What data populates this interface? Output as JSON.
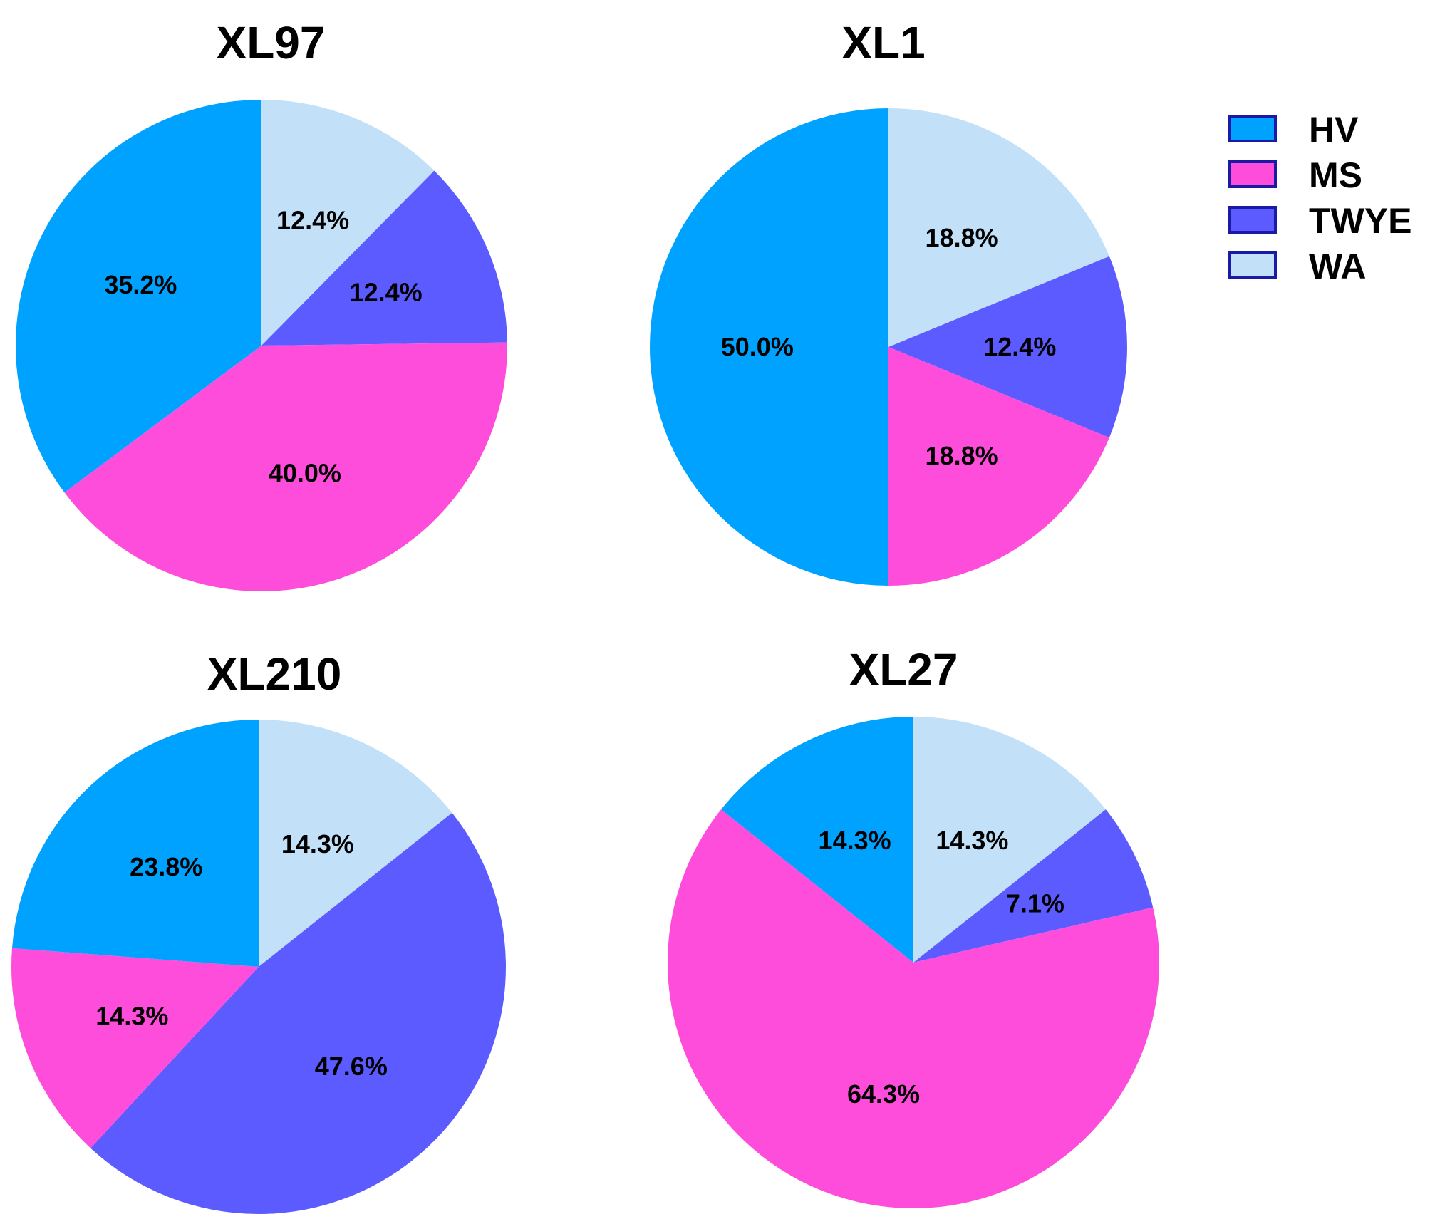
{
  "series_colors": {
    "HV": "#00a2ff",
    "MS": "#ff4ddb",
    "TWYE": "#5b5bff",
    "WA": "#c2e0f8"
  },
  "legend": {
    "placement": "top-right",
    "entries": [
      "HV",
      "MS",
      "TWYE",
      "WA"
    ],
    "border_color": "#1a1aa6"
  },
  "chart_data": [
    {
      "type": "pie",
      "title": "XL97",
      "slices": [
        {
          "category": "WA",
          "value": 12.4,
          "label": "12.4%"
        },
        {
          "category": "TWYE",
          "value": 12.4,
          "label": "12.4%"
        },
        {
          "category": "MS",
          "value": 40.0,
          "label": "40.0%"
        },
        {
          "category": "HV",
          "value": 35.2,
          "label": "35.2%"
        }
      ]
    },
    {
      "type": "pie",
      "title": "XL1",
      "slices": [
        {
          "category": "WA",
          "value": 18.8,
          "label": "18.8%"
        },
        {
          "category": "TWYE",
          "value": 12.4,
          "label": "12.4%"
        },
        {
          "category": "MS",
          "value": 18.8,
          "label": "18.8%"
        },
        {
          "category": "HV",
          "value": 50.0,
          "label": "50.0%"
        }
      ]
    },
    {
      "type": "pie",
      "title": "XL210",
      "slices": [
        {
          "category": "WA",
          "value": 14.3,
          "label": "14.3%"
        },
        {
          "category": "TWYE",
          "value": 47.6,
          "label": "47.6%"
        },
        {
          "category": "MS",
          "value": 14.3,
          "label": "14.3%"
        },
        {
          "category": "HV",
          "value": 23.8,
          "label": "23.8%"
        }
      ]
    },
    {
      "type": "pie",
      "title": "XL27",
      "slices": [
        {
          "category": "WA",
          "value": 14.3,
          "label": "14.3%"
        },
        {
          "category": "TWYE",
          "value": 7.1,
          "label": "7.1%"
        },
        {
          "category": "MS",
          "value": 64.3,
          "label": "64.3%"
        },
        {
          "category": "HV",
          "value": 14.3,
          "label": "14.3%"
        }
      ]
    }
  ]
}
